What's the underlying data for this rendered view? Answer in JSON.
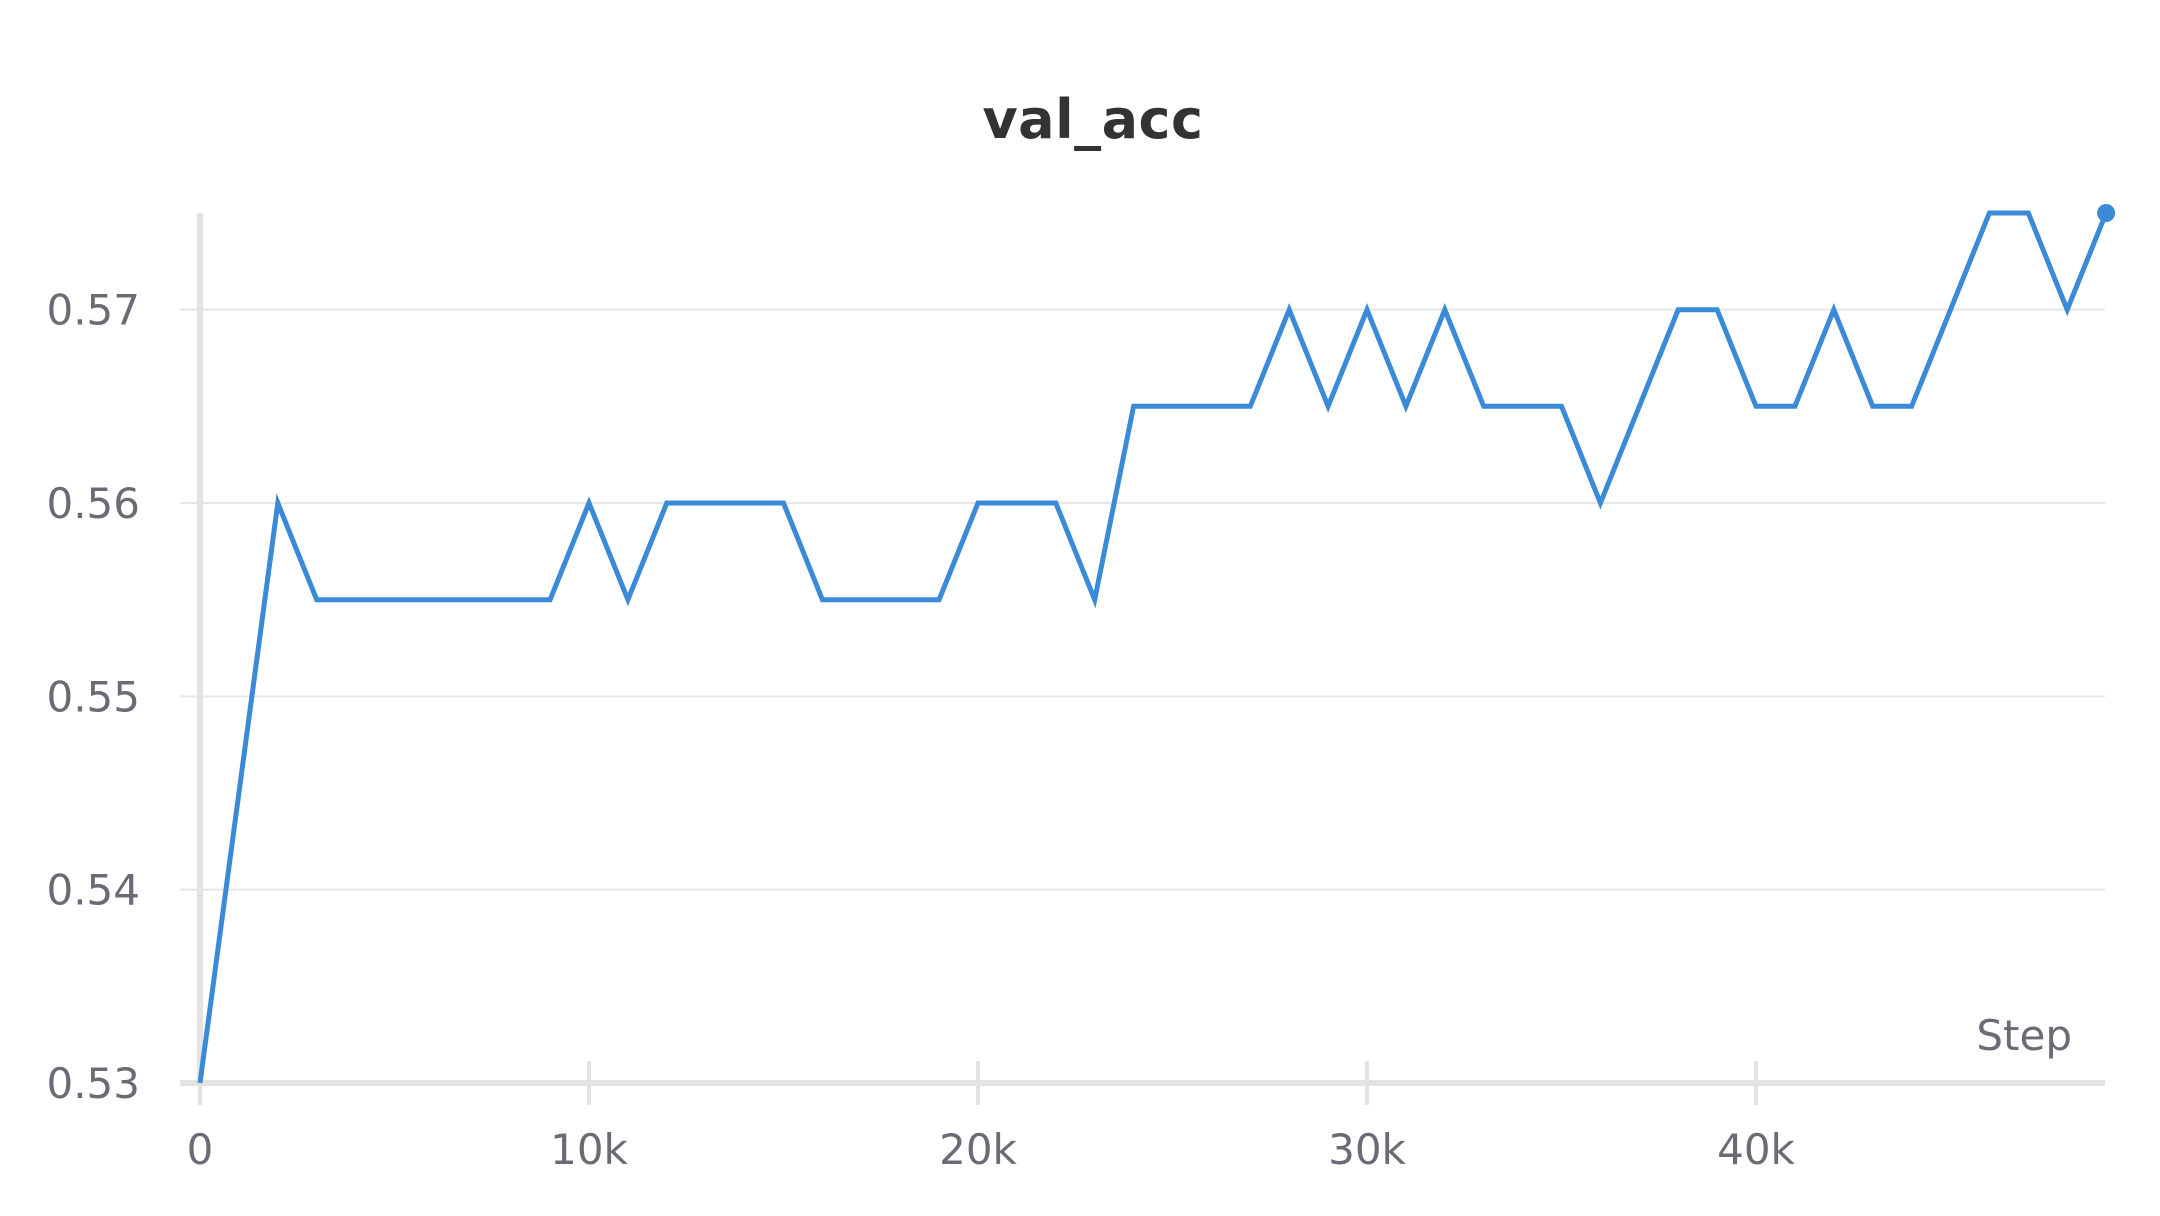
{
  "chart_data": {
    "type": "line",
    "title": "val_acc",
    "xlabel": "Step",
    "ylabel": "",
    "xlim": [
      0,
      49000
    ],
    "ylim": [
      0.53,
      0.575
    ],
    "x_ticks": [
      {
        "value": 0,
        "label": "0"
      },
      {
        "value": 10000,
        "label": "10k"
      },
      {
        "value": 20000,
        "label": "20k"
      },
      {
        "value": 30000,
        "label": "30k"
      },
      {
        "value": 40000,
        "label": "40k"
      }
    ],
    "y_ticks": [
      {
        "value": 0.53,
        "label": "0.53"
      },
      {
        "value": 0.54,
        "label": "0.54"
      },
      {
        "value": 0.55,
        "label": "0.55"
      },
      {
        "value": 0.56,
        "label": "0.56"
      },
      {
        "value": 0.57,
        "label": "0.57"
      }
    ],
    "grid": "horizontal",
    "colors": {
      "line": "#3a8ad8",
      "grid": "#e6e6e6",
      "axis": "#e3e3e3",
      "text": "#6b6b76",
      "title": "#333333"
    },
    "series": [
      {
        "x": [
          0,
          2000,
          3000,
          4000,
          5000,
          6000,
          7000,
          8000,
          9000,
          10000,
          11000,
          12000,
          13000,
          14000,
          15000,
          16000,
          17000,
          18000,
          19000,
          20000,
          21000,
          22000,
          23000,
          24000,
          25000,
          26000,
          27000,
          28000,
          29000,
          30000,
          31000,
          32000,
          33000,
          34000,
          35000,
          36000,
          37000,
          38000,
          39000,
          40000,
          41000,
          42000,
          43000,
          44000,
          45000,
          46000,
          47000,
          48000,
          49000
        ],
        "values": [
          0.53,
          0.56,
          0.555,
          0.555,
          0.555,
          0.555,
          0.555,
          0.555,
          0.555,
          0.56,
          0.555,
          0.56,
          0.56,
          0.56,
          0.56,
          0.555,
          0.555,
          0.555,
          0.555,
          0.56,
          0.56,
          0.56,
          0.555,
          0.565,
          0.565,
          0.565,
          0.565,
          0.57,
          0.565,
          0.57,
          0.565,
          0.57,
          0.565,
          0.565,
          0.565,
          0.56,
          0.565,
          0.57,
          0.57,
          0.565,
          0.565,
          0.57,
          0.565,
          0.565,
          0.57,
          0.575,
          0.575,
          0.57,
          0.575
        ]
      }
    ]
  }
}
